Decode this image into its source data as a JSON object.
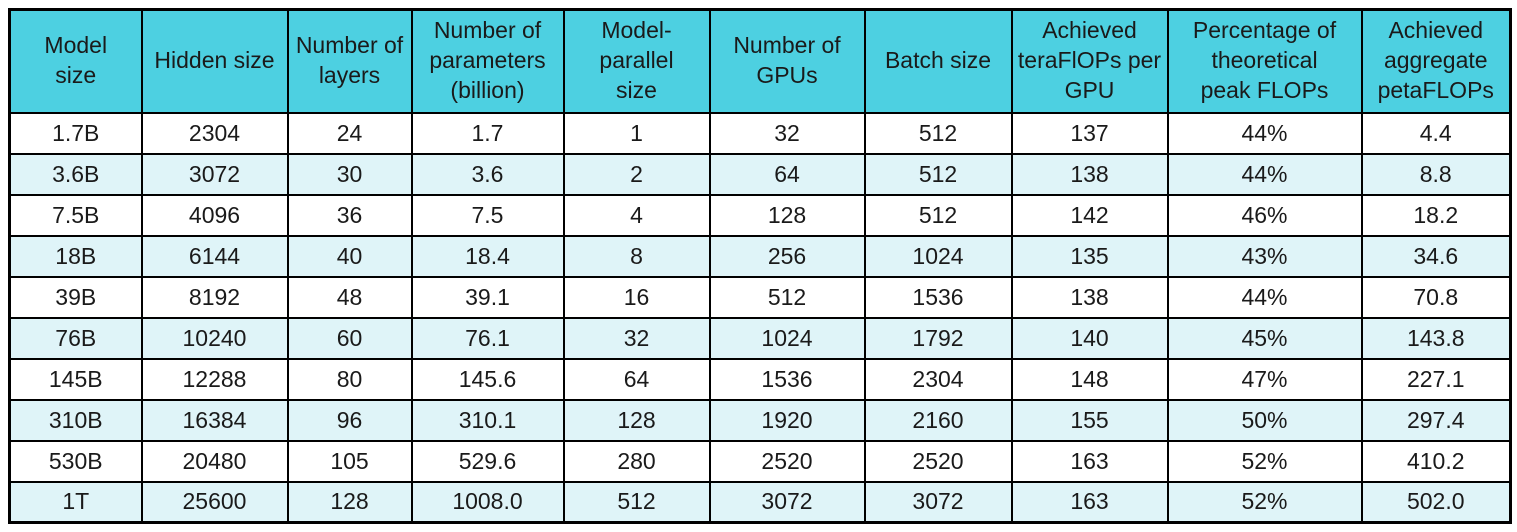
{
  "colors": {
    "header_bg": "#4DD0E1",
    "row_white_bg": "#FFFFFF",
    "row_tint_bg": "#DFF4F8",
    "border": "#000000",
    "text": "#1A1A1A"
  },
  "table": {
    "columns": [
      {
        "id": "model-size",
        "label": "Model\nsize"
      },
      {
        "id": "hidden-size",
        "label": "Hidden size"
      },
      {
        "id": "number-of-layers",
        "label": "Number of\nlayers"
      },
      {
        "id": "number-of-parameters-billion",
        "label": "Number of\nparameters\n(billion)"
      },
      {
        "id": "model-parallel-size",
        "label": "Model-parallel\nsize"
      },
      {
        "id": "number-of-gpus",
        "label": "Number of\nGPUs"
      },
      {
        "id": "batch-size",
        "label": "Batch size"
      },
      {
        "id": "achieved-teraflops-per-gpu",
        "label": "Achieved\nteraFlOPs per\nGPU"
      },
      {
        "id": "percentage-of-theoretical-peak-flops",
        "label": "Percentage of\ntheoretical\npeak FLOPs"
      },
      {
        "id": "achieved-aggregate-petaflops",
        "label": "Achieved\naggregate\npetaFLOPs"
      }
    ],
    "rows": [
      [
        "1.7B",
        "2304",
        "24",
        "1.7",
        "1",
        "32",
        "512",
        "137",
        "44%",
        "4.4"
      ],
      [
        "3.6B",
        "3072",
        "30",
        "3.6",
        "2",
        "64",
        "512",
        "138",
        "44%",
        "8.8"
      ],
      [
        "7.5B",
        "4096",
        "36",
        "7.5",
        "4",
        "128",
        "512",
        "142",
        "46%",
        "18.2"
      ],
      [
        "18B",
        "6144",
        "40",
        "18.4",
        "8",
        "256",
        "1024",
        "135",
        "43%",
        "34.6"
      ],
      [
        "39B",
        "8192",
        "48",
        "39.1",
        "16",
        "512",
        "1536",
        "138",
        "44%",
        "70.8"
      ],
      [
        "76B",
        "10240",
        "60",
        "76.1",
        "32",
        "1024",
        "1792",
        "140",
        "45%",
        "143.8"
      ],
      [
        "145B",
        "12288",
        "80",
        "145.6",
        "64",
        "1536",
        "2304",
        "148",
        "47%",
        "227.1"
      ],
      [
        "310B",
        "16384",
        "96",
        "310.1",
        "128",
        "1920",
        "2160",
        "155",
        "50%",
        "297.4"
      ],
      [
        "530B",
        "20480",
        "105",
        "529.6",
        "280",
        "2520",
        "2520",
        "163",
        "52%",
        "410.2"
      ],
      [
        "1T",
        "25600",
        "128",
        "1008.0",
        "512",
        "3072",
        "3072",
        "163",
        "52%",
        "502.0"
      ]
    ]
  }
}
